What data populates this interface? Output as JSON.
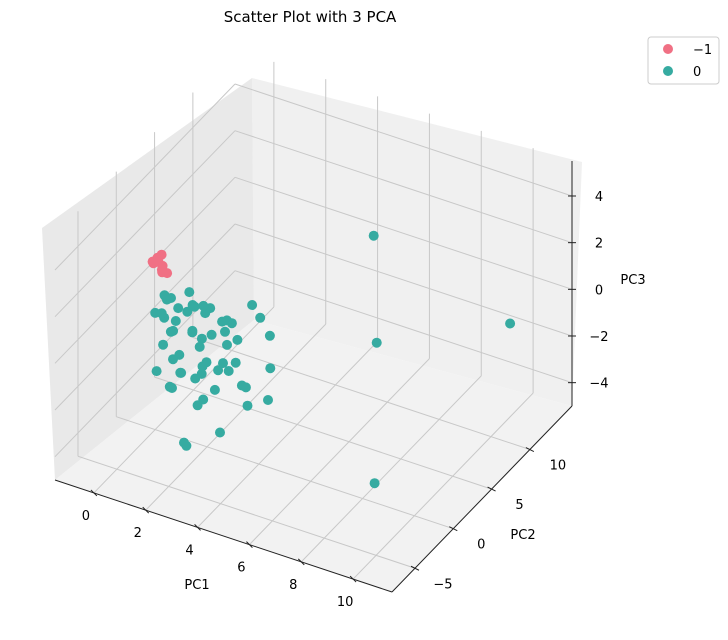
{
  "chart_data": {
    "type": "scatter",
    "projection": "3d",
    "title": "Scatter Plot with 3 PCA",
    "xlabel": "PC1",
    "ylabel": "PC2",
    "zlabel": "PC3",
    "xlim": [
      -1.5,
      11.5
    ],
    "ylim": [
      -8,
      15.5
    ],
    "zlim": [
      -5,
      5.5
    ],
    "xticks": [
      "0",
      "2",
      "4",
      "6",
      "8",
      "10"
    ],
    "yticks": [
      "−5",
      "0",
      "5",
      "10"
    ],
    "zticks": [
      "−4",
      "−2",
      "0",
      "2",
      "4"
    ],
    "grid": true,
    "legend_position": "upper-right-outside",
    "series": [
      {
        "name": "−1",
        "color": "#f07084",
        "points": [
          [
            -0.5,
            2.0,
            1.5
          ],
          [
            -0.6,
            1.8,
            1.3
          ],
          [
            -0.4,
            2.2,
            1.6
          ],
          [
            -0.3,
            1.9,
            1.1
          ],
          [
            -0.55,
            2.3,
            1.2
          ],
          [
            -0.45,
            2.5,
            1.0
          ],
          [
            -0.35,
            2.1,
            0.9
          ],
          [
            -0.6,
            1.7,
            1.4
          ],
          [
            -0.25,
            2.4,
            0.8
          ]
        ]
      },
      {
        "name": "0",
        "color": "#36aba1",
        "points": [
          [
            0.0,
            0.0,
            0.0
          ],
          [
            0.2,
            0.5,
            -0.3
          ],
          [
            0.4,
            -0.5,
            0.3
          ],
          [
            0.5,
            1.0,
            -0.5
          ],
          [
            0.6,
            -1.0,
            -0.8
          ],
          [
            0.8,
            0.3,
            0.4
          ],
          [
            0.9,
            -0.7,
            -0.2
          ],
          [
            1.0,
            1.5,
            0.2
          ],
          [
            1.1,
            -1.4,
            -1.1
          ],
          [
            1.2,
            0.8,
            -0.6
          ],
          [
            1.3,
            -0.2,
            0.6
          ],
          [
            1.4,
            1.8,
            -0.1
          ],
          [
            1.5,
            -1.8,
            -1.4
          ],
          [
            1.6,
            0.4,
            -1.0
          ],
          [
            1.7,
            -0.9,
            0.1
          ],
          [
            1.8,
            1.1,
            0.5
          ],
          [
            1.9,
            -1.2,
            -1.7
          ],
          [
            2.0,
            0.6,
            -0.4
          ],
          [
            2.1,
            -0.4,
            -1.2
          ],
          [
            2.2,
            1.3,
            0.0
          ],
          [
            2.3,
            -1.6,
            -0.9
          ],
          [
            2.4,
            0.1,
            -1.6
          ],
          [
            2.5,
            0.9,
            0.3
          ],
          [
            2.6,
            -1.0,
            -2.0
          ],
          [
            2.7,
            1.6,
            -0.7
          ],
          [
            2.8,
            -0.1,
            -0.3
          ],
          [
            2.9,
            0.7,
            -1.3
          ],
          [
            3.0,
            -1.3,
            -0.6
          ],
          [
            0.3,
            0.2,
            0.8
          ],
          [
            0.7,
            -0.3,
            1.0
          ],
          [
            0.1,
            1.2,
            0.2
          ],
          [
            0.5,
            -1.5,
            -1.8
          ],
          [
            1.0,
            0.0,
            -2.2
          ],
          [
            1.5,
            1.0,
            -2.4
          ],
          [
            0.8,
            -0.8,
            -2.6
          ],
          [
            2.0,
            -0.5,
            -2.8
          ],
          [
            1.2,
            0.4,
            1.2
          ],
          [
            1.8,
            0.2,
            0.9
          ],
          [
            2.4,
            1.9,
            -0.2
          ],
          [
            3.2,
            0.5,
            -2.1
          ],
          [
            3.5,
            0.0,
            -1.9
          ],
          [
            3.8,
            -0.8,
            -2.3
          ],
          [
            2.2,
            -1.9,
            -2.5
          ],
          [
            3.4,
            2.2,
            0.3
          ],
          [
            3.6,
            2.8,
            -0.6
          ],
          [
            4.0,
            1.5,
            -1.4
          ],
          [
            4.5,
            -0.5,
            -1.9
          ],
          [
            0.5,
            0.5,
            -3.2
          ],
          [
            1.5,
            -1.0,
            -4.8
          ],
          [
            2.5,
            0.0,
            -4.2
          ],
          [
            2.0,
            -3.0,
            -3.8
          ],
          [
            3.0,
            2.5,
            0.6
          ],
          [
            0.4,
            0.7,
            -0.9
          ],
          [
            0.9,
            0.1,
            -1.5
          ],
          [
            1.3,
            1.7,
            -1.2
          ],
          [
            2.6,
            0.8,
            -1.8
          ],
          [
            1.7,
            -0.6,
            1.1
          ],
          [
            2.9,
            -0.7,
            0.5
          ],
          [
            4.0,
            15.0,
            -0.3
          ],
          [
            10.0,
            12.5,
            -1.0
          ],
          [
            9.5,
            -3.5,
            -2.6
          ],
          [
            5.0,
            12.0,
            -3.5
          ]
        ]
      }
    ]
  }
}
